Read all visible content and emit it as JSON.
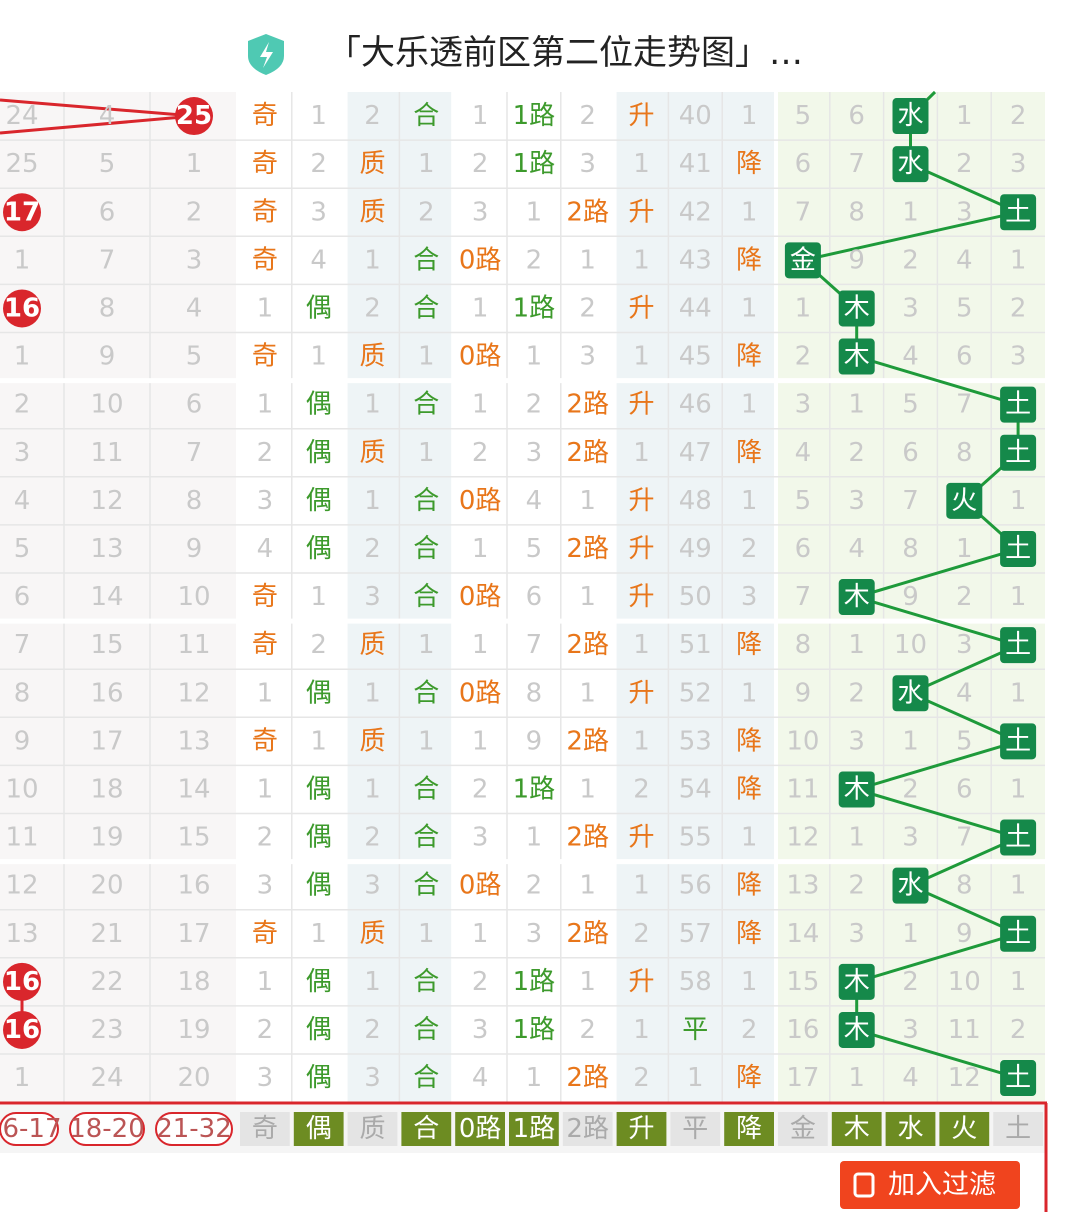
{
  "header": {
    "title": "「大乐透前区第二位走势图」…"
  },
  "table": {
    "rows": [
      [
        {
          "text": "24"
        },
        "4",
        {
          "ball": "25"
        },
        "奇",
        "1",
        "2",
        "合",
        "1",
        "1路",
        "2",
        "升",
        "40",
        "1",
        "5",
        "6",
        "水",
        "1",
        "2"
      ],
      [
        {
          "text": "25"
        },
        "5",
        {
          "text": "1"
        },
        "奇",
        "2",
        "质",
        "1",
        "2",
        "1路",
        "3",
        "1",
        "41",
        "降",
        "6",
        "7",
        "水",
        "2",
        "3"
      ],
      [
        {
          "ball": "17"
        },
        "6",
        {
          "text": "2"
        },
        "奇",
        "3",
        "质",
        "2",
        "3",
        "1",
        "2路",
        "升",
        "42",
        "1",
        "7",
        "8",
        "1",
        "3",
        "土"
      ],
      [
        {
          "text": "1"
        },
        "7",
        {
          "text": "3"
        },
        "奇",
        "4",
        "1",
        "合",
        "0路",
        "2",
        "1",
        "1",
        "43",
        "降",
        "金",
        "9",
        "2",
        "4",
        "1"
      ],
      [
        {
          "ball": "16"
        },
        "8",
        {
          "text": "4"
        },
        "1",
        "偶",
        "2",
        "合",
        "1",
        "1路",
        "2",
        "升",
        "44",
        "1",
        "1",
        "木",
        "3",
        "5",
        "2"
      ],
      [
        {
          "text": "1"
        },
        "9",
        {
          "text": "5"
        },
        "奇",
        "1",
        "质",
        "1",
        "0路",
        "1",
        "3",
        "1",
        "45",
        "降",
        "2",
        "木",
        "4",
        "6",
        "3"
      ],
      [
        {
          "text": "2"
        },
        "10",
        {
          "text": "6"
        },
        "1",
        "偶",
        "1",
        "合",
        "1",
        "2",
        "2路",
        "升",
        "46",
        "1",
        "3",
        "1",
        "5",
        "7",
        "土"
      ],
      [
        {
          "text": "3"
        },
        "11",
        {
          "text": "7"
        },
        "2",
        "偶",
        "质",
        "1",
        "2",
        "3",
        "2路",
        "1",
        "47",
        "降",
        "4",
        "2",
        "6",
        "8",
        "土"
      ],
      [
        {
          "text": "4"
        },
        "12",
        {
          "text": "8"
        },
        "3",
        "偶",
        "1",
        "合",
        "0路",
        "4",
        "1",
        "升",
        "48",
        "1",
        "5",
        "3",
        "7",
        "火",
        "1"
      ],
      [
        {
          "text": "5"
        },
        "13",
        {
          "text": "9"
        },
        "4",
        "偶",
        "2",
        "合",
        "1",
        "5",
        "2路",
        "升",
        "49",
        "2",
        "6",
        "4",
        "8",
        "1",
        "土"
      ],
      [
        {
          "text": "6"
        },
        "14",
        {
          "text": "10"
        },
        "奇",
        "1",
        "3",
        "合",
        "0路",
        "6",
        "1",
        "升",
        "50",
        "3",
        "7",
        "木",
        "9",
        "2",
        "1"
      ],
      [
        {
          "text": "7"
        },
        "15",
        {
          "text": "11"
        },
        "奇",
        "2",
        "质",
        "1",
        "1",
        "7",
        "2路",
        "1",
        "51",
        "降",
        "8",
        "1",
        "10",
        "3",
        "土"
      ],
      [
        {
          "text": "8"
        },
        "16",
        {
          "text": "12"
        },
        "1",
        "偶",
        "1",
        "合",
        "0路",
        "8",
        "1",
        "升",
        "52",
        "1",
        "9",
        "2",
        "水",
        "4",
        "1"
      ],
      [
        {
          "text": "9"
        },
        "17",
        {
          "text": "13"
        },
        "奇",
        "1",
        "质",
        "1",
        "1",
        "9",
        "2路",
        "1",
        "53",
        "降",
        "10",
        "3",
        "1",
        "5",
        "土"
      ],
      [
        {
          "text": "10"
        },
        "18",
        {
          "text": "14"
        },
        "1",
        "偶",
        "1",
        "合",
        "2",
        "1路",
        "1",
        "2",
        "54",
        "降",
        "11",
        "木",
        "2",
        "6",
        "1"
      ],
      [
        {
          "text": "11"
        },
        "19",
        {
          "text": "15"
        },
        "2",
        "偶",
        "2",
        "合",
        "3",
        "1",
        "2路",
        "升",
        "55",
        "1",
        "12",
        "1",
        "3",
        "7",
        "土"
      ],
      [
        {
          "text": "12"
        },
        "20",
        {
          "text": "16"
        },
        "3",
        "偶",
        "3",
        "合",
        "0路",
        "2",
        "1",
        "1",
        "56",
        "降",
        "13",
        "2",
        "水",
        "8",
        "1"
      ],
      [
        {
          "text": "13"
        },
        "21",
        {
          "text": "17"
        },
        "奇",
        "1",
        "质",
        "1",
        "1",
        "3",
        "2路",
        "2",
        "57",
        "降",
        "14",
        "3",
        "1",
        "9",
        "土"
      ],
      [
        {
          "ball": "16"
        },
        "22",
        {
          "text": "18"
        },
        "1",
        "偶",
        "1",
        "合",
        "2",
        "1路",
        "1",
        "升",
        "58",
        "1",
        "15",
        "木",
        "2",
        "10",
        "1"
      ],
      [
        {
          "ball": "16"
        },
        "23",
        {
          "text": "19"
        },
        "2",
        "偶",
        "2",
        "合",
        "3",
        "1路",
        "2",
        "1",
        "平",
        "2",
        "16",
        "木",
        "3",
        "11",
        "2"
      ],
      [
        {
          "text": "1"
        },
        "24",
        {
          "text": "20"
        },
        "3",
        "偶",
        "3",
        "合",
        "4",
        "1",
        "2路",
        "2",
        "1",
        "降",
        "17",
        "1",
        "4",
        "12",
        "土"
      ]
    ]
  },
  "filters": [
    {
      "label": "6-17",
      "selected": false
    },
    {
      "label": "18-20",
      "selected": false
    },
    {
      "label": "21-32",
      "selected": false
    },
    {
      "label": "奇",
      "selected": false
    },
    {
      "label": "偶",
      "selected": true
    },
    {
      "label": "质",
      "selected": false
    },
    {
      "label": "合",
      "selected": true
    },
    {
      "label": "0路",
      "selected": true
    },
    {
      "label": "1路",
      "selected": true
    },
    {
      "label": "2路",
      "selected": false
    },
    {
      "label": "升",
      "selected": true
    },
    {
      "label": "平",
      "selected": false
    },
    {
      "label": "降",
      "selected": true
    },
    {
      "label": "金",
      "selected": false
    },
    {
      "label": "木",
      "selected": true
    },
    {
      "label": "水",
      "selected": true
    },
    {
      "label": "火",
      "selected": true
    },
    {
      "label": "土",
      "selected": false
    }
  ],
  "button": {
    "label": "加入过滤"
  }
}
